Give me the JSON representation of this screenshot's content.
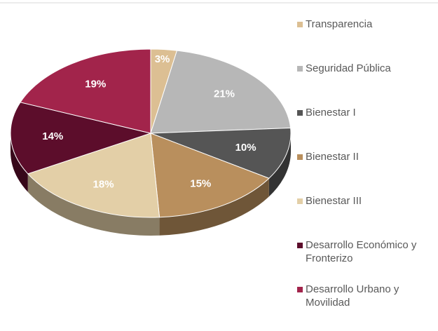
{
  "chart_data": {
    "type": "pie",
    "categories": [
      "Transparencia",
      "Seguridad Pública",
      "Bienestar I",
      "Bienestar II",
      "Bienestar III",
      "Desarrollo Económico y Fronterizo",
      "Desarrollo Urbano y Movilidad"
    ],
    "values": [
      3,
      21,
      10,
      15,
      18,
      14,
      19
    ],
    "value_labels": [
      "3%",
      "21%",
      "10%",
      "15%",
      "18%",
      "14%",
      "19%"
    ],
    "colors": [
      "#dcbf93",
      "#b7b7b7",
      "#555555",
      "#b98f5d",
      "#e3cfa7",
      "#5c0d2b",
      "#a2244b"
    ],
    "legend": "right"
  }
}
